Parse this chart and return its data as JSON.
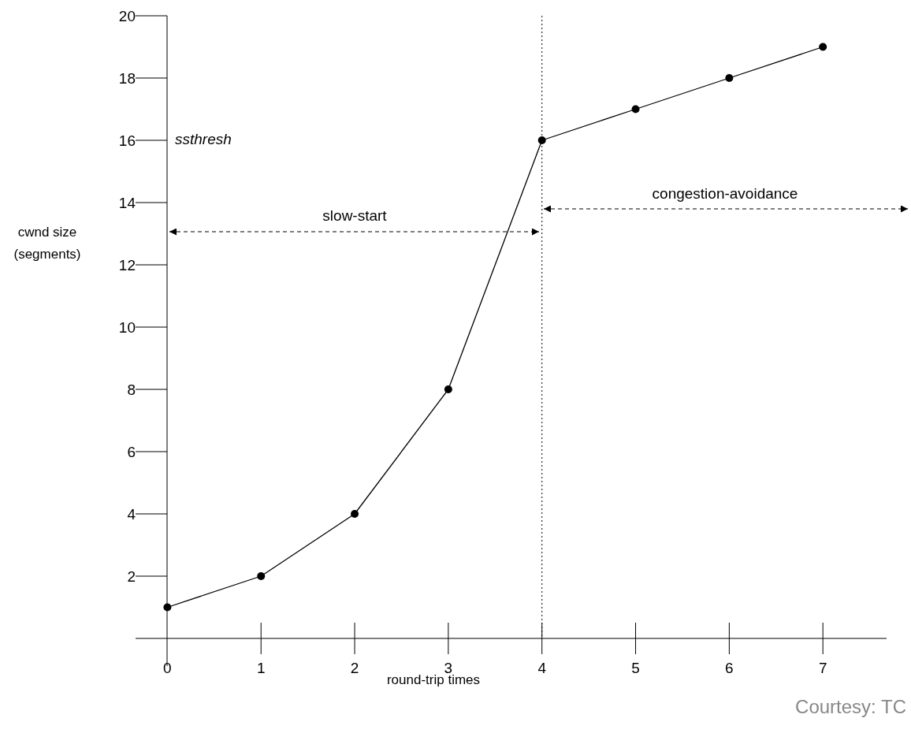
{
  "chart_data": {
    "type": "line",
    "xlabel": "round-trip times",
    "ylabel": "cwnd size (segments)",
    "x": [
      0,
      1,
      2,
      3,
      4,
      5,
      6,
      7
    ],
    "values": [
      1,
      2,
      4,
      8,
      16,
      17,
      18,
      19
    ],
    "color": "#000000",
    "marker": "circle",
    "line_style": "solid",
    "grid": false,
    "xlim": [
      -0.34,
      7.68
    ],
    "xticks": [
      0,
      1,
      2,
      3,
      4,
      5,
      6,
      7
    ],
    "ylim": [
      0,
      20
    ],
    "yticks": [
      2,
      4,
      6,
      8,
      10,
      12,
      14,
      16,
      18,
      20
    ],
    "ref_lines": [
      {
        "axis": "x",
        "value": 4,
        "line_style": "dotted",
        "color": "#000000"
      }
    ],
    "annotations": [
      "ssthresh",
      "slow-start",
      "congestion-avoidance",
      "Courtesy: TC"
    ]
  }
}
